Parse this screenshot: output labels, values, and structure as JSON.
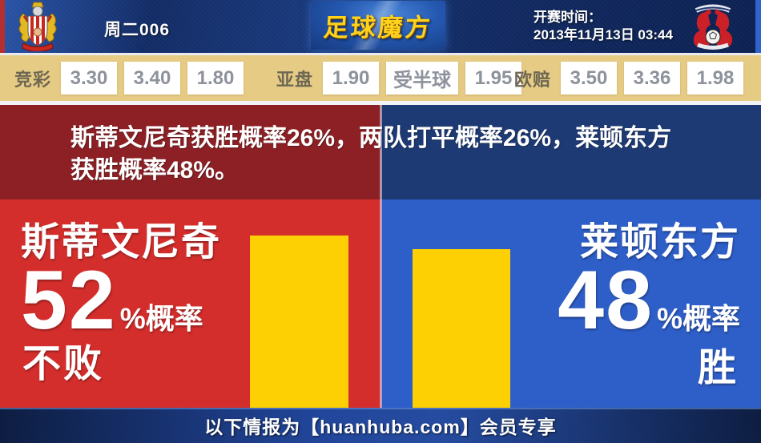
{
  "header": {
    "match_label": "周二006",
    "logo_text": "足球魔方",
    "kickoff_label": "开赛时间：",
    "kickoff_time": "2013年11月13日 03:44"
  },
  "odds_bar": {
    "jingcai": {
      "label": "竞彩",
      "values": [
        "3.30",
        "3.40",
        "1.80"
      ]
    },
    "yapan": {
      "label": "亚盘",
      "values": [
        "1.90",
        "受半球",
        "1.95"
      ]
    },
    "oupei": {
      "label": "欧赔",
      "values": [
        "3.50",
        "3.36",
        "1.98"
      ]
    }
  },
  "summary": {
    "line1": "斯蒂文尼奇获胜概率26%，两队打平概率26%，莱顿东方",
    "line2": "获胜概率48%。"
  },
  "home_panel": {
    "team": "斯蒂文尼奇",
    "probability": 52,
    "suffix": "%概率",
    "outcome": "不败"
  },
  "away_panel": {
    "team": "莱顿东方",
    "probability": 48,
    "suffix": "%概率",
    "outcome": "胜"
  },
  "footer": {
    "text": "以下情报为【huanhuba.com】会员专享"
  },
  "colors": {
    "home_red": "#d42e2c",
    "home_red_dark": "#8c2025",
    "away_blue": "#2e5ec7",
    "away_blue_dark": "#1d3a74",
    "bar_yellow": "#fcd002",
    "odds_bg": "#e6cb84",
    "logo_yellow": "#ffd21c"
  }
}
